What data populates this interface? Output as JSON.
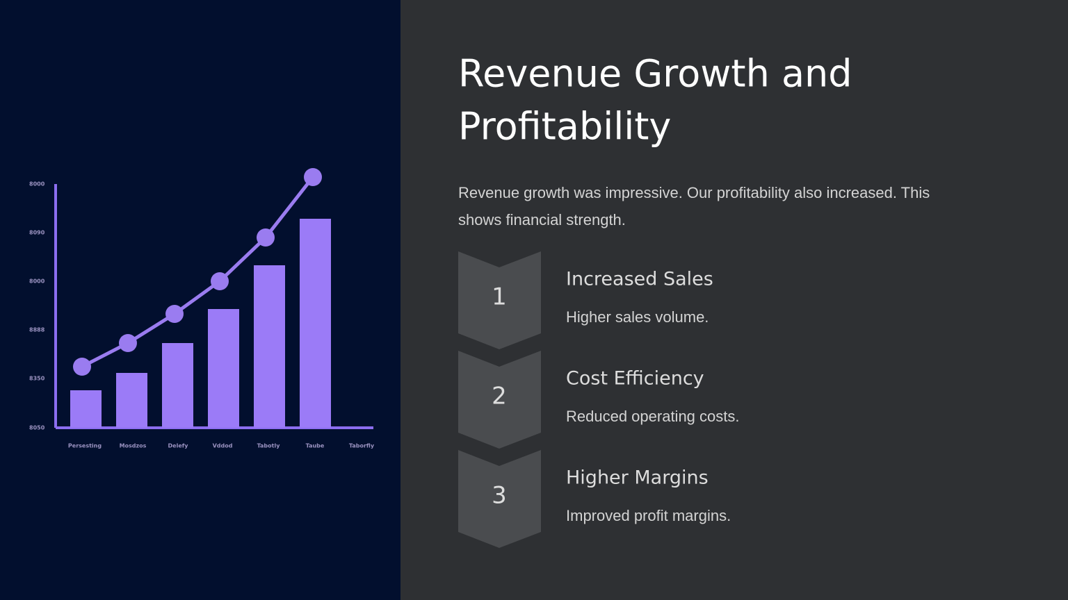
{
  "illustration": {
    "y_labels": [
      "8000",
      "8090",
      "8000",
      "8888",
      "8350",
      "8050"
    ],
    "x_labels": [
      "Persesting",
      "Mosdzos",
      "Delefy",
      "Vddod",
      "Tabotly",
      "Taube",
      "Taborfly"
    ]
  },
  "header": {
    "title_lines": [
      "Revenue Growth and",
      "Profitability"
    ]
  },
  "intro_lines": [
    "Revenue growth was impressive. Our profitability also increased. This",
    "shows financial strength."
  ],
  "steps": [
    {
      "number": "1",
      "heading": "Increased Sales",
      "text": "Higher sales volume."
    },
    {
      "number": "2",
      "heading": "Cost Efficiency",
      "text": "Reduced operating costs."
    },
    {
      "number": "3",
      "heading": "Higher Margins",
      "text": "Improved profit margins."
    }
  ]
}
